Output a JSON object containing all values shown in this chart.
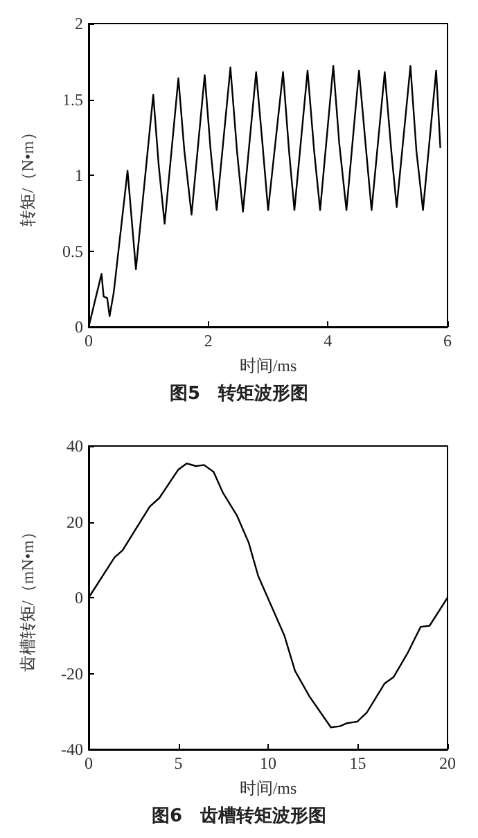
{
  "chart_data": [
    {
      "type": "line",
      "title": "图5　转矩波形图",
      "xlabel": "时间/ms",
      "ylabel": "转矩/（N•m）",
      "xlim": [
        0,
        6
      ],
      "xticks": [
        0,
        2,
        4,
        6
      ],
      "ylim": [
        0,
        2
      ],
      "yticks": [
        0,
        0.5,
        1,
        1.5,
        2
      ],
      "grid": false,
      "marker": "none",
      "line_style": "solid",
      "series": [
        {
          "color": "#000000",
          "x": [
            0,
            0.215,
            0.25,
            0.31,
            0.35,
            0.42,
            0.65,
            0.79,
            1.08,
            1.17,
            1.27,
            1.5,
            1.6,
            1.72,
            1.94,
            2.04,
            2.14,
            2.37,
            2.48,
            2.58,
            2.8,
            2.91,
            3.0,
            3.25,
            3.35,
            3.44,
            3.66,
            3.77,
            3.87,
            4.09,
            4.19,
            4.31,
            4.52,
            4.64,
            4.73,
            4.95,
            5.06,
            5.15,
            5.38,
            5.48,
            5.59,
            5.81,
            5.88
          ],
          "values": [
            0,
            0.35,
            0.2,
            0.19,
            0.07,
            0.23,
            1.03,
            0.38,
            1.53,
            1.07,
            0.68,
            1.64,
            1.16,
            0.74,
            1.66,
            1.16,
            0.77,
            1.71,
            1.16,
            0.76,
            1.68,
            1.19,
            0.77,
            1.68,
            1.16,
            0.77,
            1.69,
            1.16,
            0.77,
            1.72,
            1.21,
            0.77,
            1.69,
            1.16,
            0.77,
            1.68,
            1.16,
            0.79,
            1.72,
            1.16,
            0.77,
            1.69,
            1.18
          ]
        }
      ]
    },
    {
      "type": "line",
      "title": "图6　齿槽转矩波形图",
      "xlabel": "时间/ms",
      "ylabel": "齿槽转矩/（mN•m）",
      "xlim": [
        0,
        20
      ],
      "xticks": [
        0,
        5,
        10,
        15,
        20
      ],
      "ylim": [
        -40,
        40
      ],
      "yticks": [
        -40,
        -20,
        0,
        20,
        40
      ],
      "grid": false,
      "marker": "none",
      "line_style": "solid",
      "series": [
        {
          "color": "#000000",
          "x": [
            0,
            1.44,
            1.89,
            3.4,
            3.94,
            5,
            5.46,
            5.98,
            6.43,
            6.96,
            7.48,
            8.27,
            8.92,
            9.45,
            10.9,
            11.5,
            12.3,
            13.5,
            14,
            14.4,
            14.96,
            15.5,
            16.5,
            17,
            17.8,
            18.5,
            19,
            20
          ],
          "values": [
            0,
            10.6,
            12.5,
            24,
            26.3,
            33.8,
            35.4,
            34.7,
            35,
            33.2,
            27.7,
            21.6,
            14.5,
            5.7,
            -9.9,
            -19.3,
            -26,
            -34.2,
            -33.9,
            -33.1,
            -32.7,
            -30.3,
            -22.6,
            -20.9,
            -14.4,
            -7.7,
            -7.4,
            0
          ]
        }
      ]
    }
  ]
}
